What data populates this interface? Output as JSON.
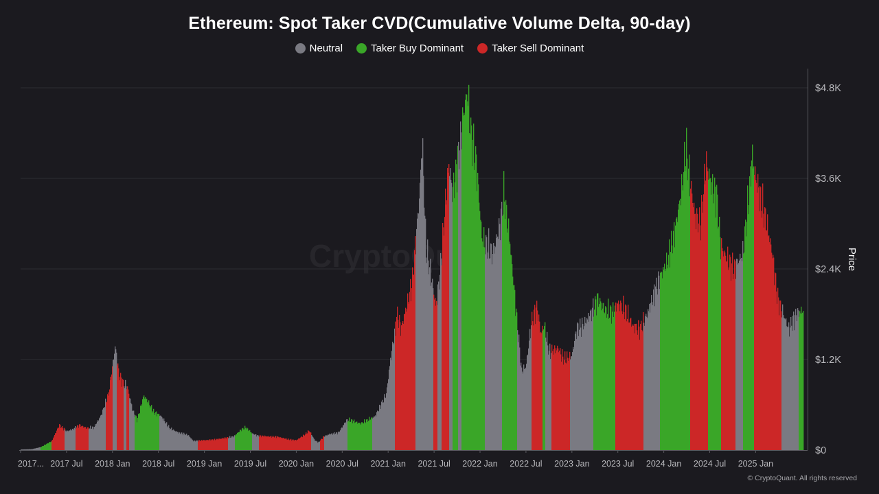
{
  "watermark": "CryptoQuant",
  "credit": "© CryptoQuant. All rights reserved",
  "colors": {
    "background": "#1b1a1f",
    "grid": "#2e2d33",
    "neutral": "#7a7a82",
    "buy": "#3aa628",
    "sell": "#cc2727",
    "text": "#ffffff",
    "tick": "#b8b8bc"
  },
  "chart_data": {
    "type": "bar",
    "title": "Ethereum: Spot Taker CVD(Cumulative Volume Delta, 90-day)",
    "xlabel": "",
    "ylabel": "Price",
    "ylim": [
      0,
      4800
    ],
    "y_ticks": [
      {
        "value": 0,
        "label": "$0"
      },
      {
        "value": 1200,
        "label": "$1.2K"
      },
      {
        "value": 2400,
        "label": "$2.4K"
      },
      {
        "value": 3600,
        "label": "$3.6K"
      },
      {
        "value": 4800,
        "label": "$4.8K"
      }
    ],
    "x_ticks": [
      "2017...",
      "2017 Jul",
      "2018 Jan",
      "2018 Jul",
      "2019 Jan",
      "2019 Jul",
      "2020 Jan",
      "2020 Jul",
      "2021 Jan",
      "2021 Jul",
      "2022 Jan",
      "2022 Jul",
      "2023 Jan",
      "2023 Jul",
      "2024 Jan",
      "2024 Jul",
      "2025 Jan"
    ],
    "x_tick_times": [
      2017.0,
      2017.5,
      2018.0,
      2018.5,
      2019.0,
      2019.5,
      2020.0,
      2020.5,
      2021.0,
      2021.5,
      2022.0,
      2022.5,
      2023.0,
      2023.5,
      2024.0,
      2024.5,
      2025.0
    ],
    "x_range": [
      2017.0,
      2025.52
    ],
    "legend": [
      {
        "key": "neutral",
        "label": "Neutral"
      },
      {
        "key": "buy",
        "label": "Taker Buy Dominant"
      },
      {
        "key": "sell",
        "label": "Taker Sell Dominant"
      }
    ],
    "legend_position": "top-center",
    "price_anchors": [
      [
        2017.0,
        8
      ],
      [
        2017.12,
        12
      ],
      [
        2017.22,
        40
      ],
      [
        2017.34,
        120
      ],
      [
        2017.42,
        330
      ],
      [
        2017.5,
        250
      ],
      [
        2017.56,
        270
      ],
      [
        2017.64,
        330
      ],
      [
        2017.72,
        290
      ],
      [
        2017.8,
        300
      ],
      [
        2017.88,
        470
      ],
      [
        2017.96,
        760
      ],
      [
        2018.03,
        1380
      ],
      [
        2018.07,
        1000
      ],
      [
        2018.12,
        880
      ],
      [
        2018.16,
        840
      ],
      [
        2018.22,
        520
      ],
      [
        2018.27,
        400
      ],
      [
        2018.34,
        720
      ],
      [
        2018.38,
        650
      ],
      [
        2018.45,
        500
      ],
      [
        2018.52,
        460
      ],
      [
        2018.62,
        290
      ],
      [
        2018.72,
        230
      ],
      [
        2018.82,
        200
      ],
      [
        2018.88,
        120
      ],
      [
        2019.0,
        130
      ],
      [
        2019.12,
        140
      ],
      [
        2019.25,
        165
      ],
      [
        2019.32,
        180
      ],
      [
        2019.4,
        270
      ],
      [
        2019.45,
        300
      ],
      [
        2019.52,
        220
      ],
      [
        2019.58,
        190
      ],
      [
        2019.7,
        180
      ],
      [
        2019.8,
        175
      ],
      [
        2019.92,
        140
      ],
      [
        2020.0,
        130
      ],
      [
        2020.1,
        210
      ],
      [
        2020.14,
        260
      ],
      [
        2020.2,
        130
      ],
      [
        2020.24,
        100
      ],
      [
        2020.3,
        180
      ],
      [
        2020.36,
        210
      ],
      [
        2020.46,
        230
      ],
      [
        2020.55,
        400
      ],
      [
        2020.6,
        390
      ],
      [
        2020.7,
        350
      ],
      [
        2020.8,
        410
      ],
      [
        2020.86,
        450
      ],
      [
        2020.92,
        600
      ],
      [
        2020.98,
        740
      ],
      [
        2021.02,
        1150
      ],
      [
        2021.1,
        1800
      ],
      [
        2021.14,
        1600
      ],
      [
        2021.2,
        1900
      ],
      [
        2021.26,
        2200
      ],
      [
        2021.34,
        3350
      ],
      [
        2021.37,
        4100
      ],
      [
        2021.41,
        2700
      ],
      [
        2021.46,
        2350
      ],
      [
        2021.52,
        1900
      ],
      [
        2021.56,
        2300
      ],
      [
        2021.62,
        3200
      ],
      [
        2021.66,
        3800
      ],
      [
        2021.7,
        3400
      ],
      [
        2021.76,
        3850
      ],
      [
        2021.82,
        4450
      ],
      [
        2021.86,
        4750
      ],
      [
        2021.9,
        4200
      ],
      [
        2021.96,
        3800
      ],
      [
        2022.02,
        2800
      ],
      [
        2022.08,
        2700
      ],
      [
        2022.14,
        2600
      ],
      [
        2022.22,
        3000
      ],
      [
        2022.26,
        3400
      ],
      [
        2022.32,
        2800
      ],
      [
        2022.38,
        2000
      ],
      [
        2022.45,
        1050
      ],
      [
        2022.5,
        1100
      ],
      [
        2022.56,
        1700
      ],
      [
        2022.62,
        1900
      ],
      [
        2022.66,
        1550
      ],
      [
        2022.7,
        1650
      ],
      [
        2022.75,
        1300
      ],
      [
        2022.85,
        1350
      ],
      [
        2022.91,
        1200
      ],
      [
        2023.0,
        1250
      ],
      [
        2023.05,
        1600
      ],
      [
        2023.12,
        1650
      ],
      [
        2023.2,
        1800
      ],
      [
        2023.28,
        2000
      ],
      [
        2023.36,
        1850
      ],
      [
        2023.44,
        1820
      ],
      [
        2023.5,
        1950
      ],
      [
        2023.58,
        1850
      ],
      [
        2023.66,
        1650
      ],
      [
        2023.74,
        1600
      ],
      [
        2023.82,
        1800
      ],
      [
        2023.9,
        2100
      ],
      [
        2023.96,
        2300
      ],
      [
        2024.04,
        2500
      ],
      [
        2024.12,
        2900
      ],
      [
        2024.2,
        3500
      ],
      [
        2024.24,
        4000
      ],
      [
        2024.28,
        3600
      ],
      [
        2024.34,
        3100
      ],
      [
        2024.4,
        3000
      ],
      [
        2024.46,
        3800
      ],
      [
        2024.52,
        3500
      ],
      [
        2024.57,
        3400
      ],
      [
        2024.62,
        2700
      ],
      [
        2024.68,
        2550
      ],
      [
        2024.76,
        2400
      ],
      [
        2024.86,
        2600
      ],
      [
        2024.92,
        3300
      ],
      [
        2024.96,
        3900
      ],
      [
        2025.0,
        3600
      ],
      [
        2025.06,
        3300
      ],
      [
        2025.12,
        3000
      ],
      [
        2025.18,
        2600
      ],
      [
        2025.24,
        2000
      ],
      [
        2025.3,
        1800
      ],
      [
        2025.36,
        1600
      ],
      [
        2025.44,
        1800
      ],
      [
        2025.51,
        1850
      ]
    ],
    "regimes": [
      [
        2017.0,
        2017.22,
        "neutral"
      ],
      [
        2017.22,
        2017.34,
        "buy"
      ],
      [
        2017.34,
        2017.48,
        "sell"
      ],
      [
        2017.48,
        2017.6,
        "neutral"
      ],
      [
        2017.6,
        2017.74,
        "sell"
      ],
      [
        2017.74,
        2017.93,
        "neutral"
      ],
      [
        2017.93,
        2018.0,
        "sell"
      ],
      [
        2018.0,
        2018.05,
        "neutral"
      ],
      [
        2018.05,
        2018.12,
        "sell"
      ],
      [
        2018.12,
        2018.15,
        "neutral"
      ],
      [
        2018.15,
        2018.18,
        "sell"
      ],
      [
        2018.18,
        2018.24,
        "neutral"
      ],
      [
        2018.24,
        2018.51,
        "buy"
      ],
      [
        2018.51,
        2018.93,
        "neutral"
      ],
      [
        2018.93,
        2019.26,
        "sell"
      ],
      [
        2019.26,
        2019.33,
        "neutral"
      ],
      [
        2019.33,
        2019.52,
        "buy"
      ],
      [
        2019.52,
        2019.59,
        "neutral"
      ],
      [
        2019.59,
        2020.16,
        "sell"
      ],
      [
        2020.16,
        2020.26,
        "neutral"
      ],
      [
        2020.26,
        2020.3,
        "sell"
      ],
      [
        2020.3,
        2020.56,
        "neutral"
      ],
      [
        2020.56,
        2020.83,
        "buy"
      ],
      [
        2020.83,
        2021.07,
        "neutral"
      ],
      [
        2021.07,
        2021.3,
        "sell"
      ],
      [
        2021.3,
        2021.49,
        "neutral"
      ],
      [
        2021.49,
        2021.54,
        "sell"
      ],
      [
        2021.54,
        2021.58,
        "neutral"
      ],
      [
        2021.58,
        2021.66,
        "sell"
      ],
      [
        2021.66,
        2021.7,
        "neutral"
      ],
      [
        2021.7,
        2021.76,
        "buy"
      ],
      [
        2021.76,
        2021.8,
        "neutral"
      ],
      [
        2021.8,
        2022.05,
        "buy"
      ],
      [
        2022.05,
        2022.24,
        "neutral"
      ],
      [
        2022.24,
        2022.4,
        "buy"
      ],
      [
        2022.4,
        2022.56,
        "neutral"
      ],
      [
        2022.56,
        2022.68,
        "sell"
      ],
      [
        2022.68,
        2022.71,
        "buy"
      ],
      [
        2022.71,
        2022.78,
        "neutral"
      ],
      [
        2022.78,
        2022.98,
        "sell"
      ],
      [
        2022.98,
        2023.23,
        "neutral"
      ],
      [
        2023.23,
        2023.47,
        "buy"
      ],
      [
        2023.47,
        2023.78,
        "sell"
      ],
      [
        2023.78,
        2023.96,
        "neutral"
      ],
      [
        2023.96,
        2024.29,
        "buy"
      ],
      [
        2024.29,
        2024.48,
        "sell"
      ],
      [
        2024.48,
        2024.62,
        "buy"
      ],
      [
        2024.62,
        2024.78,
        "sell"
      ],
      [
        2024.78,
        2024.86,
        "neutral"
      ],
      [
        2024.86,
        2024.98,
        "buy"
      ],
      [
        2024.98,
        2025.28,
        "sell"
      ],
      [
        2025.28,
        2025.47,
        "neutral"
      ],
      [
        2025.47,
        2025.52,
        "buy"
      ]
    ]
  }
}
